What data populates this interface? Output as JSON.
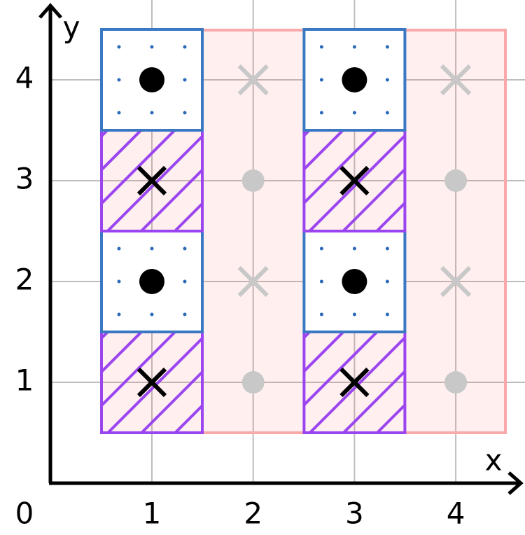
{
  "axes": {
    "x_label": "x",
    "y_label": "y",
    "origin_label": "0",
    "x_ticks": [
      "1",
      "2",
      "3",
      "4"
    ],
    "y_ticks": [
      "1",
      "2",
      "3",
      "4"
    ]
  }
}
